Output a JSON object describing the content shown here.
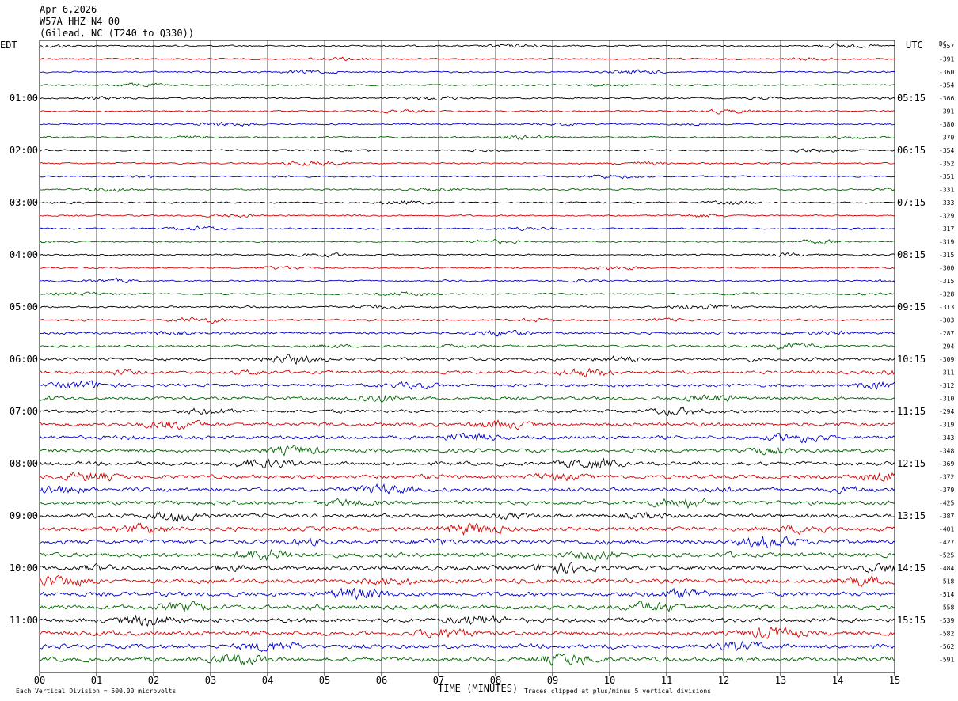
{
  "header": {
    "date": "Apr 6,2026",
    "station": "W57A HHZ N4 00",
    "location": "(Gilead, NC (T240 to Q330))"
  },
  "left_axis_label": "EDT",
  "right_axis_label": "UTC",
  "dc_label": "DC",
  "footer": {
    "xlabel": "TIME (MINUTES)",
    "scale_note": "Each Vertical Division =  500.00 microvolts",
    "clip_note": "Traces clipped at plus/minus 5 vertical divisions"
  },
  "colors": {
    "trace_cycle": [
      "#000000",
      "#d40000",
      "#0000cc",
      "#006400"
    ],
    "grid": "#000000",
    "background": "#ffffff"
  },
  "chart_data": {
    "type": "seismogram helicorder",
    "x_ticks": [
      "00",
      "01",
      "02",
      "03",
      "04",
      "05",
      "06",
      "07",
      "08",
      "09",
      "10",
      "11",
      "12",
      "13",
      "14",
      "15"
    ],
    "x_range_minutes": [
      0,
      15
    ],
    "left_hour_labels": [
      {
        "row": 4,
        "label": "01:00"
      },
      {
        "row": 8,
        "label": "02:00"
      },
      {
        "row": 12,
        "label": "03:00"
      },
      {
        "row": 16,
        "label": "04:00"
      },
      {
        "row": 20,
        "label": "05:00"
      },
      {
        "row": 24,
        "label": "06:00"
      },
      {
        "row": 28,
        "label": "07:00"
      },
      {
        "row": 32,
        "label": "08:00"
      },
      {
        "row": 36,
        "label": "09:00"
      },
      {
        "row": 40,
        "label": "10:00"
      },
      {
        "row": 44,
        "label": "11:00"
      }
    ],
    "right_hour_labels": [
      {
        "row": 4,
        "label": "05:15"
      },
      {
        "row": 8,
        "label": "06:15"
      },
      {
        "row": 12,
        "label": "07:15"
      },
      {
        "row": 16,
        "label": "08:15"
      },
      {
        "row": 20,
        "label": "09:15"
      },
      {
        "row": 24,
        "label": "10:15"
      },
      {
        "row": 28,
        "label": "11:15"
      },
      {
        "row": 32,
        "label": "12:15"
      },
      {
        "row": 36,
        "label": "13:15"
      },
      {
        "row": 40,
        "label": "14:15"
      },
      {
        "row": 44,
        "label": "15:15"
      }
    ],
    "dc_offsets": [
      -357,
      -391,
      -360,
      -354,
      -366,
      -391,
      -380,
      -370,
      -354,
      -352,
      -351,
      -331,
      -333,
      -329,
      -317,
      -319,
      -315,
      -300,
      -315,
      -328,
      -313,
      -303,
      -287,
      -294,
      -309,
      -311,
      -312,
      -310,
      -294,
      -319,
      -343,
      -348,
      -369,
      -372,
      -379,
      -425,
      -387,
      -401,
      -427,
      -525,
      -484,
      -518,
      -514,
      -558,
      -539,
      -582,
      -562,
      -591
    ],
    "trace_amplitude_level": [
      1,
      1,
      1,
      1,
      1,
      1,
      1,
      1,
      1,
      1,
      1,
      1,
      1,
      1,
      1,
      1,
      1,
      1,
      1,
      1,
      1.3,
      1.3,
      1.5,
      1.5,
      2,
      2,
      2,
      2,
      2,
      2.3,
      2.3,
      2.3,
      2.5,
      2.5,
      2.5,
      2.5,
      2.5,
      2.8,
      2.8,
      2.8,
      2.8,
      2.8,
      2.8,
      2.8,
      2.8,
      2.8,
      2.8,
      2.8
    ]
  }
}
